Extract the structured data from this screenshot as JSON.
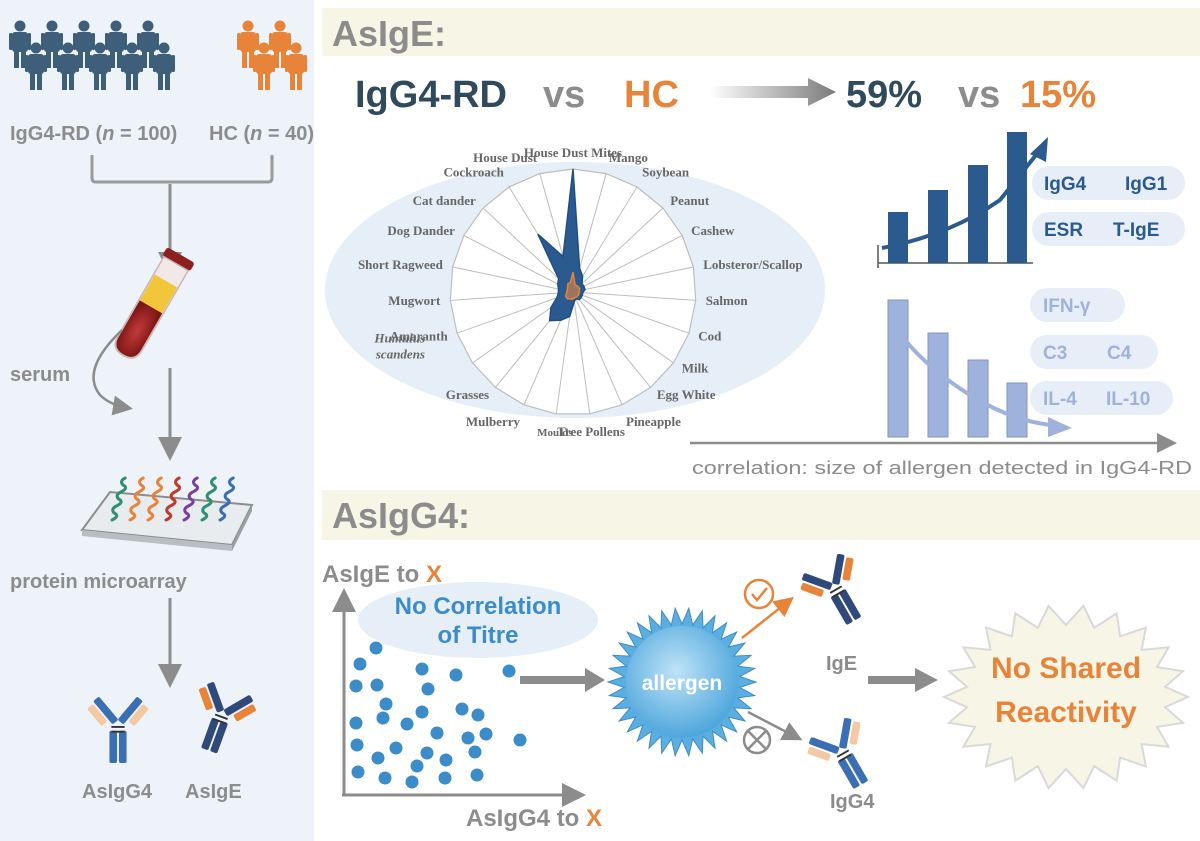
{
  "left_panel": {
    "group1_label": "IgG4-RD",
    "group1_n": "100",
    "group2_label": "HC",
    "group2_n": "40",
    "n_symbol": "n",
    "n_eq": " = ",
    "serum_label": "serum",
    "microarray_label": "protein microarray",
    "antibody1_label": "AsIgG4",
    "antibody2_label": "AsIgE"
  },
  "asige": {
    "section_title": "AsIgE:",
    "compare_left": "IgG4-RD",
    "compare_vs1": "vs",
    "compare_right": "HC",
    "pct_left": "59%",
    "pct_vs": "vs",
    "pct_right": "15%",
    "radar_labels": [
      "House Dust Mites",
      "Mango",
      "Soybean",
      "Peanut",
      "Cashew",
      "Lobsteror/Scallop",
      "Salmon",
      "Cod",
      "Milk",
      "Egg White",
      "Pineapple",
      "Tree Pollens",
      "Moulds",
      "Mulberry",
      "Grasses",
      "Humulus scandens",
      "Amaranth",
      "Mugwort",
      "Short Ragweed",
      "Dog Dander",
      "Cat dander",
      "Cockroach",
      "House Dust"
    ],
    "humulus_line1": "Humulus",
    "humulus_line2": "scandens",
    "positive_markers": [
      "IgG4",
      "IgG1",
      "ESR",
      "T-IgE"
    ],
    "negative_markers": [
      "IFN-γ",
      "C3",
      "C4",
      "IL-4",
      "IL-10"
    ],
    "correlation_caption": "correlation: size  of allergen detected in IgG4-RD"
  },
  "asigg4": {
    "section_title": "AsIgG4:",
    "y_axis_prefix": "AsIgE to ",
    "y_axis_x": "X",
    "x_axis_prefix": "AsIgG4 to ",
    "x_axis_x": "X",
    "note_line1": "No Correlation",
    "note_line2": "of Titre",
    "allergen_label": "allergen",
    "ige_label": "IgE",
    "igg4_label": "IgG4",
    "result_line1": "No Shared",
    "result_line2": "Reactivity"
  },
  "colors": {
    "dark_teal": "#2f4a5c",
    "orange": "#e8843a",
    "navy": "#2b5a8f",
    "light_blue": "#9fb2dc",
    "gray": "#8c8c8c",
    "panel_bg": "#eef3f9",
    "header_bg": "#f7f5e6",
    "dot_blue": "#3b8cc9"
  }
}
